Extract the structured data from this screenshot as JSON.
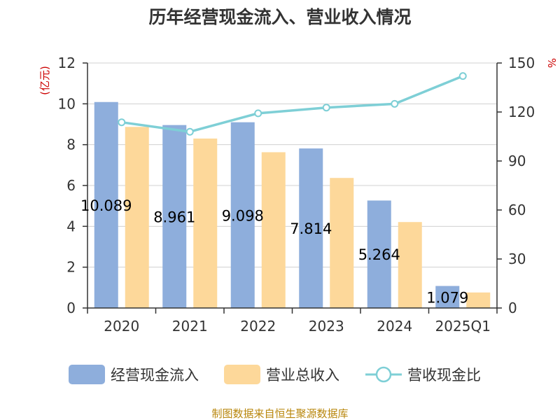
{
  "chart_data": {
    "type": "bar",
    "title": "历年经营现金流入、营业收入情况",
    "categories": [
      "2020",
      "2021",
      "2022",
      "2023",
      "2024",
      "2025Q1"
    ],
    "series": [
      {
        "name": "经营现金流入",
        "kind": "bar",
        "axis": "left",
        "color": "#8EAEDC",
        "values": [
          10.089,
          8.961,
          9.098,
          7.814,
          5.264,
          1.079
        ],
        "labels": [
          "10.089",
          "8.961",
          "9.098",
          "7.814",
          "5.264",
          "1.079"
        ]
      },
      {
        "name": "营业总收入",
        "kind": "bar",
        "axis": "left",
        "color": "#FDD89A",
        "values": [
          8.87,
          8.3,
          7.63,
          6.37,
          4.21,
          0.76
        ]
      },
      {
        "name": "营收现金比",
        "kind": "line",
        "axis": "right",
        "color": "#7ECFD6",
        "values": [
          113.7,
          107.9,
          119.2,
          122.7,
          125.0,
          142.0
        ]
      }
    ],
    "ylabel": "(亿元)",
    "y2label": "%",
    "ylim": [
      0,
      12
    ],
    "yticks": [
      "0",
      "2",
      "4",
      "6",
      "8",
      "10",
      "12"
    ],
    "y2lim": [
      0,
      150
    ],
    "y2ticks": [
      "0",
      "30",
      "60",
      "90",
      "120",
      "150"
    ],
    "grid": true,
    "legend_position": "bottom"
  },
  "source": "制图数据来自恒生聚源数据库",
  "colors": {
    "title": "#333333",
    "axis": "#333333",
    "grid": "#d0d0d0",
    "unit": "#cc0000",
    "source": "#b8860b"
  }
}
